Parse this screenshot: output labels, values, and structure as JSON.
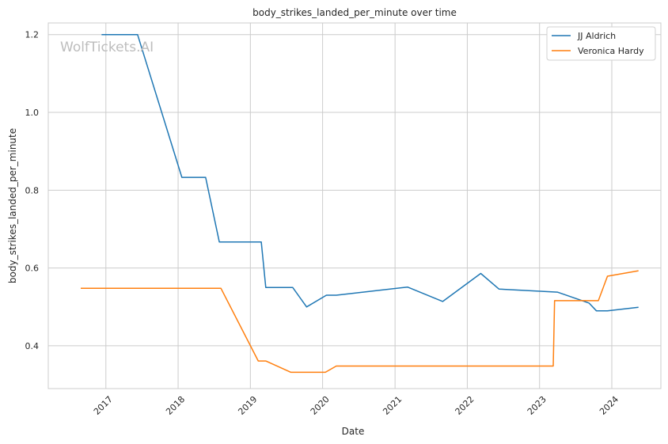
{
  "chart_data": {
    "type": "line",
    "title": "body_strikes_landed_per_minute over time",
    "xlabel": "Date",
    "ylabel": "body_strikes_landed_per_minute",
    "watermark": "WolfTickets.AI",
    "x_tick_labels": [
      "2017",
      "2018",
      "2019",
      "2020",
      "2021",
      "2022",
      "2023",
      "2024"
    ],
    "y_tick_labels": [
      "0.4",
      "0.6",
      "0.8",
      "1.0",
      "1.2"
    ],
    "y_ticks": [
      0.4,
      0.6,
      0.8,
      1.0,
      1.2
    ],
    "xlim": [
      "2016-03-16",
      "2024-09-05"
    ],
    "ylim": [
      0.29,
      1.23
    ],
    "grid": true,
    "legend_position": "top-right",
    "series": [
      {
        "name": "JJ Aldrich",
        "color": "#1f77b4",
        "points": [
          [
            "2016-12-10",
            1.2
          ],
          [
            "2017-06-10",
            1.2
          ],
          [
            "2018-01-20",
            0.833
          ],
          [
            "2018-05-20",
            0.833
          ],
          [
            "2018-07-28",
            0.667
          ],
          [
            "2019-02-25",
            0.667
          ],
          [
            "2019-03-20",
            0.55
          ],
          [
            "2019-08-03",
            0.55
          ],
          [
            "2019-10-12",
            0.5
          ],
          [
            "2020-01-20",
            0.53
          ],
          [
            "2020-03-10",
            0.53
          ],
          [
            "2021-03-05",
            0.551
          ],
          [
            "2021-08-30",
            0.514
          ],
          [
            "2022-03-10",
            0.586
          ],
          [
            "2022-06-10",
            0.546
          ],
          [
            "2023-04-01",
            0.538
          ],
          [
            "2023-09-08",
            0.51
          ],
          [
            "2023-10-15",
            0.49
          ],
          [
            "2023-12-10",
            0.49
          ],
          [
            "2024-05-15",
            0.499
          ]
        ]
      },
      {
        "name": "Veronica Hardy",
        "color": "#ff7f0e",
        "points": [
          [
            "2016-08-27",
            0.548
          ],
          [
            "2018-08-05",
            0.548
          ],
          [
            "2019-02-10",
            0.361
          ],
          [
            "2019-03-20",
            0.361
          ],
          [
            "2019-07-25",
            0.332
          ],
          [
            "2020-01-15",
            0.332
          ],
          [
            "2020-03-10",
            0.348
          ],
          [
            "2023-03-11",
            0.348
          ],
          [
            "2023-03-18",
            0.516
          ],
          [
            "2023-10-25",
            0.516
          ],
          [
            "2023-12-10",
            0.579
          ],
          [
            "2024-05-15",
            0.593
          ]
        ]
      }
    ]
  }
}
